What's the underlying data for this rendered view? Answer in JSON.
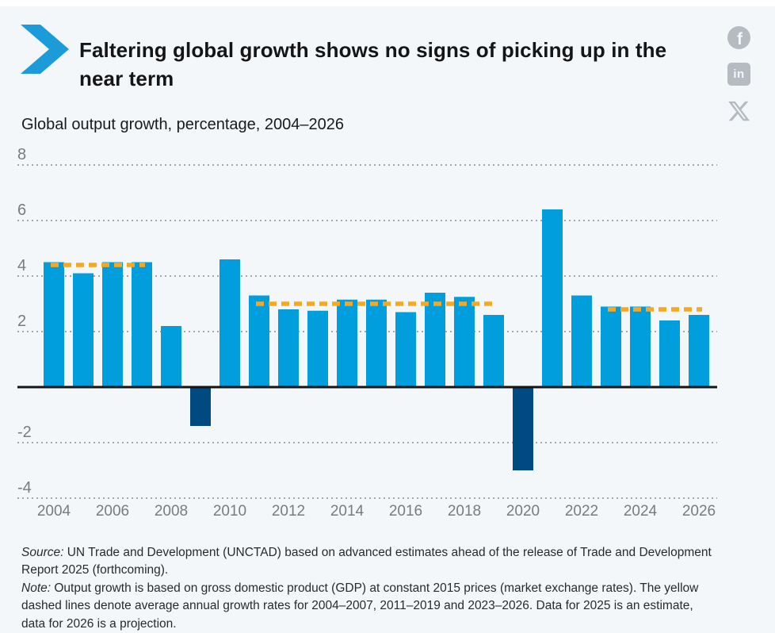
{
  "header": {
    "title": "Faltering global growth shows no signs of picking up in the near term",
    "subtitle": "Global output growth, percentage, 2004–2026",
    "share": {
      "facebook_glyph": "f",
      "linkedin_glyph": "in"
    }
  },
  "chart_data": {
    "type": "bar",
    "title": "Global output growth, percentage, 2004–2026",
    "xlabel": "",
    "ylabel": "percentage",
    "categories": [
      2004,
      2005,
      2006,
      2007,
      2008,
      2009,
      2010,
      2011,
      2012,
      2013,
      2014,
      2015,
      2016,
      2017,
      2018,
      2019,
      2020,
      2021,
      2022,
      2023,
      2024,
      2025,
      2026
    ],
    "values": [
      4.5,
      4.1,
      4.5,
      4.5,
      2.2,
      -1.4,
      4.6,
      3.3,
      2.8,
      2.75,
      3.15,
      3.15,
      2.7,
      3.4,
      3.25,
      2.6,
      -3.0,
      6.4,
      3.3,
      2.9,
      2.9,
      2.4,
      2.6
    ],
    "yticks": [
      8,
      6,
      4,
      2,
      -2,
      -4
    ],
    "ylim": [
      -4.6,
      8.6
    ],
    "xticks": [
      2004,
      2006,
      2008,
      2010,
      2012,
      2014,
      2016,
      2018,
      2020,
      2022,
      2024,
      2026
    ],
    "grid": "dotted",
    "legend": "none",
    "average_lines": [
      {
        "label": "2004–2007 average",
        "from": 2004,
        "to": 2007,
        "value": 4.4
      },
      {
        "label": "2011–2019 average",
        "from": 2011,
        "to": 2019,
        "value": 3.0
      },
      {
        "label": "2023–2026 average",
        "from": 2023,
        "to": 2026,
        "value": 2.8
      }
    ]
  },
  "footer": {
    "paragraphs": [
      {
        "label": "Source:",
        "lines": [
          " UN Trade and Development (UNCTAD) based on advanced estimates ahead of the release of Trade and Development",
          "Report 2025 (forthcoming)."
        ]
      },
      {
        "label": "Note:",
        "lines": [
          " Output growth is based on gross domestic product (GDP) at constant 2015 prices (market exchange rates). The yellow",
          "dashed lines denote average annual growth rates for 2004–2007, 2011–2019 and 2023–2026. Data for 2025 is an estimate,",
          "data for 2026 is a projection."
        ]
      }
    ]
  },
  "colors": {
    "background": "#F3F7FA",
    "bar_positive": "#009EDC",
    "bar_negative": "#004A82",
    "average_line": "#F7A81E",
    "gridline": "#ABA69F",
    "axis_label": "#7b7b7b",
    "zero_line": "#141414",
    "brand_chevron": "#1B9CD9",
    "share_icon": "#b5bbc0",
    "title_text": "#151515",
    "footer_text": "#2a2a2a"
  }
}
